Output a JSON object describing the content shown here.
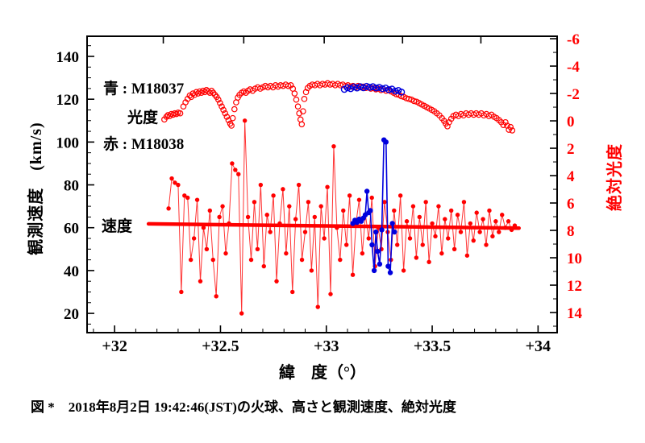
{
  "figure": {
    "legend": {
      "line1": "青 : M18037",
      "line2": "赤 : M18038"
    },
    "inner_labels": {
      "luminosity": "光度",
      "velocity": "速度"
    },
    "axis_titles": {
      "left": "観測速度　(km/s)",
      "right": "絶対光度",
      "bottom": "緯　度（°）"
    },
    "caption": "図 *　2018年8月2日 19:42:46(JST)の火球、高さと観測速度、絶対光度"
  },
  "colors": {
    "red": "#ff0000",
    "blue": "#0000dd",
    "black": "#000000"
  },
  "chart_data": {
    "type": "scatter",
    "title": "",
    "x_axis": {
      "label": "緯 度（°）",
      "min": 31.87,
      "max": 34.09,
      "ticks": [
        32,
        32.5,
        33,
        33.5,
        34
      ],
      "tick_labels": [
        "+32",
        "+32.5",
        "+33",
        "+33.5",
        "+34"
      ],
      "minor_step": 0.1
    },
    "y_left": {
      "label": "観測速度 (km/s)",
      "min": 11,
      "max": 149.4,
      "ticks": [
        20,
        40,
        60,
        80,
        100,
        120,
        140
      ],
      "tick_labels": [
        "20",
        "40",
        "60",
        "80",
        "100",
        "120",
        "140"
      ],
      "minor_step": 5
    },
    "y_right": {
      "label": "絶対光度",
      "min": -6.18,
      "max": 15.47,
      "inverted": true,
      "ticks": [
        -6,
        -4,
        -2,
        0,
        2,
        4,
        6,
        8,
        10,
        12,
        14
      ],
      "tick_labels": [
        "-6",
        "-4",
        "-2",
        "0",
        "2",
        "4",
        "6",
        "8",
        "10",
        "12",
        "14"
      ],
      "minor_step": 2
    },
    "top_ticks": [
      32.23,
      32.61,
      32.99,
      33.36,
      33.73
    ],
    "grid": false,
    "series": [
      {
        "name": "M18038 光度 (red, absolute magnitude, right axis)",
        "color": "red",
        "axis": "right",
        "marker": "open",
        "line": "none",
        "points": [
          [
            32.235,
            -0.1
          ],
          [
            32.245,
            -0.3
          ],
          [
            32.252,
            -0.42
          ],
          [
            32.26,
            -0.35
          ],
          [
            32.268,
            -0.5
          ],
          [
            32.276,
            -0.45
          ],
          [
            32.284,
            -0.55
          ],
          [
            32.292,
            -0.5
          ],
          [
            32.3,
            -0.6
          ],
          [
            32.31,
            -0.55
          ],
          [
            32.325,
            -1.05
          ],
          [
            32.335,
            -1.35
          ],
          [
            32.345,
            -1.6
          ],
          [
            32.355,
            -1.85
          ],
          [
            32.362,
            -1.75
          ],
          [
            32.37,
            -2.0
          ],
          [
            32.378,
            -1.9
          ],
          [
            32.386,
            -2.1
          ],
          [
            32.394,
            -2.0
          ],
          [
            32.402,
            -2.15
          ],
          [
            32.41,
            -2.05
          ],
          [
            32.418,
            -2.2
          ],
          [
            32.426,
            -2.1
          ],
          [
            32.434,
            -2.25
          ],
          [
            32.442,
            -2.15
          ],
          [
            32.45,
            -2.05
          ],
          [
            32.458,
            -2.2
          ],
          [
            32.466,
            -2.05
          ],
          [
            32.474,
            -1.9
          ],
          [
            32.482,
            -1.75
          ],
          [
            32.49,
            -1.55
          ],
          [
            32.498,
            -1.3
          ],
          [
            32.506,
            -1.05
          ],
          [
            32.514,
            -0.8
          ],
          [
            32.522,
            -0.55
          ],
          [
            32.53,
            -0.3
          ],
          [
            32.538,
            -0.05
          ],
          [
            32.546,
            0.2
          ],
          [
            32.552,
            0.35
          ],
          [
            32.558,
            -0.2
          ],
          [
            32.566,
            -0.85
          ],
          [
            32.574,
            -1.35
          ],
          [
            32.582,
            -1.7
          ],
          [
            32.59,
            -1.9
          ],
          [
            32.6,
            -2.05
          ],
          [
            32.61,
            -2.15
          ],
          [
            32.62,
            -2.05
          ],
          [
            32.63,
            -2.2
          ],
          [
            32.64,
            -2.3
          ],
          [
            32.652,
            -2.2
          ],
          [
            32.664,
            -2.35
          ],
          [
            32.676,
            -2.45
          ],
          [
            32.688,
            -2.35
          ],
          [
            32.7,
            -2.45
          ],
          [
            32.712,
            -2.55
          ],
          [
            32.724,
            -2.45
          ],
          [
            32.736,
            -2.55
          ],
          [
            32.748,
            -2.45
          ],
          [
            32.76,
            -2.6
          ],
          [
            32.772,
            -2.5
          ],
          [
            32.784,
            -2.6
          ],
          [
            32.796,
            -2.55
          ],
          [
            32.808,
            -2.65
          ],
          [
            32.82,
            -2.55
          ],
          [
            32.832,
            -2.6
          ],
          [
            32.842,
            -2.35
          ],
          [
            32.85,
            -2.0
          ],
          [
            32.858,
            -1.55
          ],
          [
            32.866,
            -1.05
          ],
          [
            32.872,
            -0.55
          ],
          [
            32.878,
            -0.1
          ],
          [
            32.884,
            0.25
          ],
          [
            32.89,
            -0.7
          ],
          [
            32.896,
            -1.6
          ],
          [
            32.904,
            -2.1
          ],
          [
            32.912,
            -2.4
          ],
          [
            32.922,
            -2.55
          ],
          [
            32.934,
            -2.65
          ],
          [
            32.946,
            -2.6
          ],
          [
            32.958,
            -2.7
          ],
          [
            32.97,
            -2.6
          ],
          [
            32.982,
            -2.7
          ],
          [
            32.994,
            -2.65
          ],
          [
            33.006,
            -2.75
          ],
          [
            33.018,
            -2.65
          ],
          [
            33.03,
            -2.7
          ],
          [
            33.042,
            -2.6
          ],
          [
            33.054,
            -2.7
          ],
          [
            33.066,
            -2.6
          ],
          [
            33.078,
            -2.65
          ],
          [
            33.09,
            -2.55
          ],
          [
            33.102,
            -2.6
          ],
          [
            33.114,
            -2.5
          ],
          [
            33.126,
            -2.55
          ],
          [
            33.138,
            -2.45
          ],
          [
            33.15,
            -2.55
          ],
          [
            33.162,
            -2.45
          ],
          [
            33.174,
            -2.5
          ],
          [
            33.186,
            -2.4
          ],
          [
            33.198,
            -2.45
          ],
          [
            33.21,
            -2.35
          ],
          [
            33.222,
            -2.4
          ],
          [
            33.234,
            -2.3
          ],
          [
            33.246,
            -2.35
          ],
          [
            33.258,
            -2.25
          ],
          [
            33.27,
            -2.3
          ],
          [
            33.282,
            -2.2
          ],
          [
            33.294,
            -2.25
          ],
          [
            33.306,
            -2.15
          ],
          [
            33.318,
            -2.05
          ],
          [
            33.33,
            -1.95
          ],
          [
            33.342,
            -1.9
          ],
          [
            33.354,
            -1.8
          ],
          [
            33.366,
            -1.75
          ],
          [
            33.378,
            -1.65
          ],
          [
            33.39,
            -1.6
          ],
          [
            33.402,
            -1.55
          ],
          [
            33.414,
            -1.45
          ],
          [
            33.426,
            -1.4
          ],
          [
            33.438,
            -1.3
          ],
          [
            33.45,
            -1.2
          ],
          [
            33.462,
            -1.1
          ],
          [
            33.474,
            -1.0
          ],
          [
            33.486,
            -0.9
          ],
          [
            33.498,
            -0.8
          ],
          [
            33.51,
            -0.7
          ],
          [
            33.522,
            -0.55
          ],
          [
            33.534,
            -0.4
          ],
          [
            33.546,
            -0.2
          ],
          [
            33.556,
            0.0
          ],
          [
            33.564,
            0.2
          ],
          [
            33.572,
            0.4
          ],
          [
            33.58,
            0.1
          ],
          [
            33.59,
            -0.15
          ],
          [
            33.6,
            -0.35
          ],
          [
            33.612,
            -0.45
          ],
          [
            33.624,
            -0.35
          ],
          [
            33.636,
            -0.5
          ],
          [
            33.648,
            -0.4
          ],
          [
            33.66,
            -0.55
          ],
          [
            33.672,
            -0.45
          ],
          [
            33.684,
            -0.55
          ],
          [
            33.696,
            -0.45
          ],
          [
            33.708,
            -0.55
          ],
          [
            33.72,
            -0.45
          ],
          [
            33.732,
            -0.55
          ],
          [
            33.744,
            -0.4
          ],
          [
            33.756,
            -0.5
          ],
          [
            33.768,
            -0.35
          ],
          [
            33.78,
            -0.45
          ],
          [
            33.792,
            -0.3
          ],
          [
            33.804,
            -0.2
          ],
          [
            33.816,
            -0.05
          ],
          [
            33.826,
            0.1
          ],
          [
            33.836,
            0.3
          ],
          [
            33.846,
            0.1
          ],
          [
            33.854,
            0.35
          ],
          [
            33.862,
            0.65
          ],
          [
            33.87,
            0.45
          ],
          [
            33.878,
            0.7
          ]
        ]
      },
      {
        "name": "M18037 光度 (blue, absolute magnitude, right axis)",
        "color": "blue",
        "axis": "right",
        "marker": "open",
        "line": "thin",
        "points": [
          [
            33.085,
            -2.3
          ],
          [
            33.1,
            -2.42
          ],
          [
            33.115,
            -2.35
          ],
          [
            33.13,
            -2.48
          ],
          [
            33.145,
            -2.4
          ],
          [
            33.16,
            -2.5
          ],
          [
            33.175,
            -2.42
          ],
          [
            33.19,
            -2.52
          ],
          [
            33.205,
            -2.45
          ],
          [
            33.22,
            -2.5
          ],
          [
            33.235,
            -2.4
          ],
          [
            33.25,
            -2.45
          ],
          [
            33.265,
            -2.35
          ],
          [
            33.28,
            -2.4
          ],
          [
            33.295,
            -2.28
          ],
          [
            33.31,
            -2.32
          ],
          [
            33.325,
            -2.18
          ],
          [
            33.34,
            -2.22
          ],
          [
            33.355,
            -2.1
          ]
        ]
      },
      {
        "name": "M18038 観測速度 (red, km/s, left axis)",
        "color": "red",
        "axis": "left",
        "marker": "dot",
        "line": "thin",
        "lat_start": 32.255,
        "lat_step": 0.015,
        "values": [
          69,
          83,
          81,
          80,
          30,
          75,
          74,
          45,
          55,
          73,
          35,
          60,
          50,
          68,
          45,
          28,
          65,
          70,
          48,
          62,
          90,
          87,
          85,
          20,
          110,
          65,
          45,
          72,
          50,
          80,
          42,
          66,
          58,
          75,
          35,
          62,
          78,
          48,
          70,
          30,
          64,
          80,
          45,
          58,
          72,
          40,
          65,
          23,
          70,
          55,
          79,
          29,
          98,
          60,
          45,
          68,
          52,
          75,
          38,
          62,
          73,
          48,
          66,
          55,
          74,
          42,
          60,
          50,
          72,
          58,
          45,
          68,
          52,
          75,
          40,
          63,
          55,
          70,
          46,
          65,
          52,
          72,
          44,
          62,
          56,
          70,
          48,
          64,
          55,
          68,
          50,
          66,
          58,
          72,
          47,
          62,
          54,
          67,
          58,
          64,
          52,
          68,
          56,
          63,
          58,
          66,
          60,
          63,
          59,
          61
        ]
      },
      {
        "name": "速度フィット直線 (thick red line ~60 km/s)",
        "color": "red",
        "axis": "left",
        "marker": "none",
        "line": "thick",
        "points": [
          [
            32.16,
            61.8
          ],
          [
            33.91,
            59.8
          ]
        ]
      },
      {
        "name": "M18037 観測速度 (blue, km/s, left axis)",
        "color": "blue",
        "axis": "left",
        "marker": "dot",
        "line": "medium",
        "points": [
          [
            33.125,
            62
          ],
          [
            33.135,
            63.5
          ],
          [
            33.145,
            62.5
          ],
          [
            33.155,
            64
          ],
          [
            33.165,
            63
          ],
          [
            33.175,
            64.5
          ],
          [
            33.184,
            66
          ],
          [
            33.192,
            77
          ],
          [
            33.2,
            67
          ],
          [
            33.208,
            68
          ],
          [
            33.216,
            52
          ],
          [
            33.226,
            40
          ],
          [
            33.234,
            58
          ],
          [
            33.242,
            49
          ],
          [
            33.252,
            43
          ],
          [
            33.262,
            59
          ],
          [
            33.272,
            101
          ],
          [
            33.282,
            100
          ],
          [
            33.292,
            42
          ],
          [
            33.302,
            39
          ],
          [
            33.312,
            62
          ],
          [
            33.322,
            58
          ]
        ]
      }
    ]
  }
}
